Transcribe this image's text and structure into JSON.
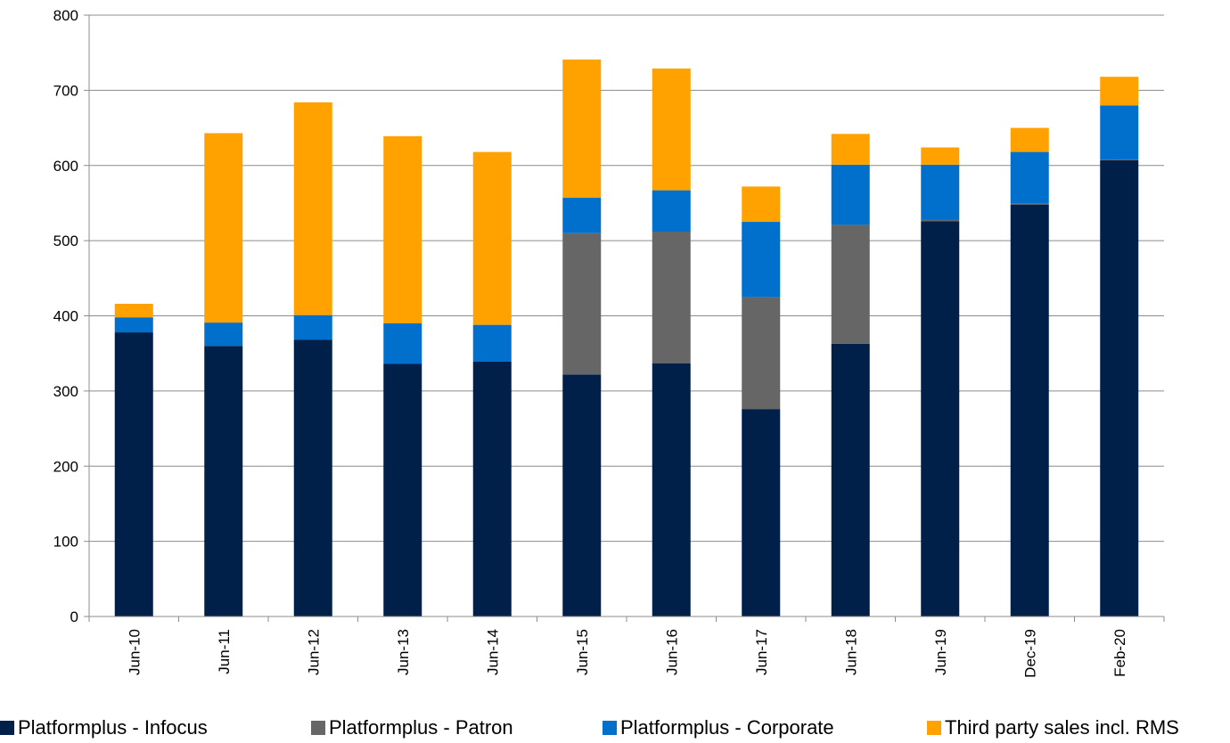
{
  "chart_data": {
    "type": "bar",
    "stacked": true,
    "categories": [
      "Jun-10",
      "Jun-11",
      "Jun-12",
      "Jun-13",
      "Jun-14",
      "Jun-15",
      "Jun-16",
      "Jun-17",
      "Jun-18",
      "Jun-19",
      "Dec-19",
      "Feb-20"
    ],
    "series": [
      {
        "name": "Platformplus - Infocus",
        "color": "#00204a",
        "values": [
          378,
          360,
          368,
          336,
          339,
          322,
          337,
          276,
          363,
          526,
          548,
          607
        ]
      },
      {
        "name": "Platformplus - Patron",
        "color": "#666666",
        "values": [
          0,
          0,
          0,
          0,
          0,
          188,
          175,
          149,
          158,
          2,
          1,
          1
        ]
      },
      {
        "name": "Platformplus - Corporate",
        "color": "#0070cc",
        "values": [
          20,
          31,
          33,
          54,
          49,
          47,
          55,
          100,
          80,
          73,
          69,
          72
        ]
      },
      {
        "name": "Third party sales incl. RMS",
        "color": "#ffa200",
        "values": [
          18,
          252,
          283,
          249,
          230,
          184,
          162,
          47,
          41,
          23,
          32,
          38
        ]
      }
    ],
    "ylim": [
      0,
      800
    ],
    "yticks": [
      "0",
      "100",
      "200",
      "300",
      "400",
      "500",
      "600",
      "700",
      "800"
    ],
    "grid": true,
    "legend_position": "bottom"
  }
}
